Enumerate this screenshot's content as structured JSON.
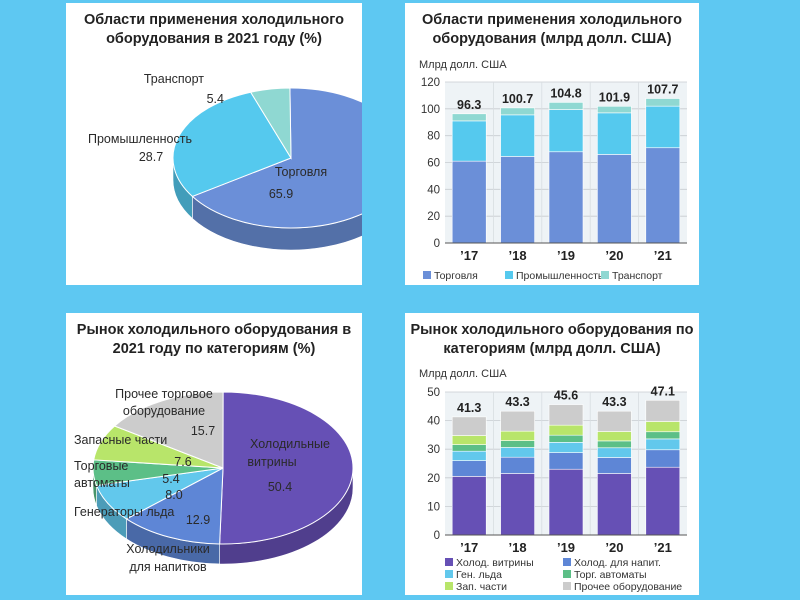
{
  "colors": {
    "background": "#5ec8f2",
    "trade": "#6b8fd8",
    "industry": "#55c9ee",
    "transport": "#8fd8d2",
    "display_cases": "#6650b5",
    "beverage_fridges": "#5e86d6",
    "ice_makers": "#62c8ec",
    "vending": "#5cbf87",
    "spare_parts": "#b8e56a",
    "other": "#cccccc"
  },
  "chart_data": [
    {
      "id": "pie1",
      "type": "pie",
      "title": "Области применения холодильного оборудования в 2021 году (%)",
      "slices": [
        {
          "label": "Торговля",
          "value": 65.9,
          "color_key": "trade"
        },
        {
          "label": "Промышленность",
          "value": 28.7,
          "color_key": "industry"
        },
        {
          "label": "Транспорт",
          "value": 5.4,
          "color_key": "transport"
        }
      ]
    },
    {
      "id": "bar1",
      "type": "bar",
      "stacked": true,
      "title": "Области применения холодильного оборудования (млрд долл. США)",
      "unit_label": "Млрд долл. США",
      "categories": [
        "’17",
        "’18",
        "’19",
        "’20",
        "’21"
      ],
      "totals": [
        "96.3",
        "100.7",
        "104.8",
        "101.9",
        "107.7"
      ],
      "ylim": [
        0,
        120
      ],
      "yticks": [
        0,
        20,
        40,
        60,
        80,
        100,
        120
      ],
      "series": [
        {
          "name": "Торговля",
          "color_key": "trade",
          "values": [
            61.0,
            64.5,
            68.0,
            66.0,
            71.0
          ]
        },
        {
          "name": "Промышленность",
          "color_key": "industry",
          "values": [
            30.0,
            31.0,
            31.5,
            31.0,
            31.0
          ]
        },
        {
          "name": "Транспорт",
          "color_key": "transport",
          "values": [
            5.3,
            5.2,
            5.3,
            4.9,
            5.7
          ]
        }
      ]
    },
    {
      "id": "pie2",
      "type": "pie",
      "title": "Рынок холодильного оборудования в 2021 году по категориям (%)",
      "slices": [
        {
          "label": "Холодильные витрины",
          "value": 50.4,
          "color_key": "display_cases"
        },
        {
          "label": "Холодильники для напитков",
          "value": 12.9,
          "color_key": "beverage_fridges"
        },
        {
          "label": "Генераторы льда",
          "value": 8.0,
          "color_key": "ice_makers"
        },
        {
          "label": "Торговые автоматы",
          "value": 5.4,
          "color_key": "vending"
        },
        {
          "label": "Запасные части",
          "value": 7.6,
          "color_key": "spare_parts"
        },
        {
          "label": "Прочее торговое оборудование",
          "value": 15.7,
          "color_key": "other"
        }
      ]
    },
    {
      "id": "bar2",
      "type": "bar",
      "stacked": true,
      "title": "Рынок холодильного оборудования по категориям (млрд долл. США)",
      "unit_label": "Млрд долл. США",
      "categories": [
        "’17",
        "’18",
        "’19",
        "’20",
        "’21"
      ],
      "totals": [
        "41.3",
        "43.3",
        "45.6",
        "43.3",
        "47.1"
      ],
      "ylim": [
        0,
        50
      ],
      "yticks": [
        0,
        10,
        20,
        30,
        40,
        50
      ],
      "series": [
        {
          "name": "Холод. витрины",
          "color_key": "display_cases",
          "values": [
            20.5,
            21.5,
            23.0,
            21.5,
            23.7
          ]
        },
        {
          "name": "Холод. для напит.",
          "color_key": "beverage_fridges",
          "values": [
            5.5,
            5.7,
            5.8,
            5.6,
            6.1
          ]
        },
        {
          "name": "Ген. льда",
          "color_key": "ice_makers",
          "values": [
            3.3,
            3.4,
            3.6,
            3.4,
            3.8
          ]
        },
        {
          "name": "Торг. автоматы",
          "color_key": "vending",
          "values": [
            2.3,
            2.4,
            2.5,
            2.4,
            2.5
          ]
        },
        {
          "name": "Зап. части",
          "color_key": "spare_parts",
          "values": [
            3.2,
            3.3,
            3.5,
            3.3,
            3.6
          ]
        },
        {
          "name": "Прочее оборудование",
          "color_key": "other",
          "values": [
            6.5,
            7.0,
            7.2,
            7.1,
            7.4
          ]
        }
      ]
    }
  ],
  "labels": {
    "p1_trade": "Торговля",
    "p1_trade_val": "65.9",
    "p1_ind": "Промышленность",
    "p1_ind_val": "28.7",
    "p1_tr": "Транспорт",
    "p1_tr_val": "5.4",
    "p2_disp1": "Холодильные",
    "p2_disp2": "витрины",
    "p2_disp_val": "50.4",
    "p2_other1": "Прочее торговое",
    "p2_other2": "оборудование",
    "p2_other_val": "15.7",
    "p2_spare": "Запасные части",
    "p2_spare_val": "7.6",
    "p2_vend1": "Торговые",
    "p2_vend2": "автоматы",
    "p2_vend_val": "5.4",
    "p2_ice": "Генераторы льда",
    "p2_ice_val": "8.0",
    "p2_bev_val": "12.9",
    "p2_bev1": "Холодильники",
    "p2_bev2": "для напитков"
  }
}
